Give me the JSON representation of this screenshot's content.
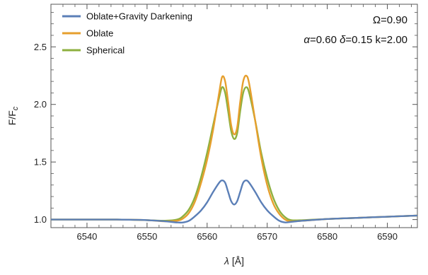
{
  "chart_data": {
    "type": "line",
    "title": "",
    "xlabel_symbol": "λ",
    "xlabel_unit": "[Å]",
    "ylabel_main": "F/F",
    "ylabel_sub": "c",
    "xlim": [
      6534,
      6595
    ],
    "ylim": [
      0.93,
      2.87
    ],
    "xticks": [
      6540,
      6550,
      6560,
      6570,
      6580,
      6590
    ],
    "yticks": [
      1.0,
      1.5,
      2.0,
      2.5
    ],
    "ytick_labels": [
      "1.0",
      "1.5",
      "2.0",
      "2.5"
    ],
    "grid": false,
    "legend_position": "top-left",
    "annotation_line1": "Ω=0.90",
    "annotation_line2": {
      "alpha_symbol": "α",
      "alpha_value": "=0.60 ",
      "delta_symbol": "δ",
      "delta_value": "=0.15 k=2.00"
    },
    "series": [
      {
        "name": "Oblate+Gravity Darkening",
        "color": "#5b7fb7",
        "x": [
          6534,
          6540,
          6545,
          6550,
          6553,
          6555,
          6556,
          6557,
          6558,
          6559,
          6560,
          6561,
          6562,
          6562.5,
          6563,
          6563.5,
          6564,
          6564.5,
          6565,
          6565.5,
          6566,
          6566.5,
          6567,
          6568,
          6569,
          6570,
          6571,
          6572,
          6573,
          6574,
          6576,
          6580,
          6585,
          6590,
          6595
        ],
        "y": [
          1.0,
          1.0,
          1.0,
          0.995,
          0.985,
          0.975,
          0.975,
          0.99,
          1.03,
          1.08,
          1.15,
          1.24,
          1.32,
          1.34,
          1.32,
          1.24,
          1.16,
          1.13,
          1.16,
          1.24,
          1.32,
          1.34,
          1.32,
          1.24,
          1.15,
          1.08,
          1.03,
          0.99,
          0.975,
          0.98,
          0.99,
          1.005,
          1.015,
          1.025,
          1.035
        ]
      },
      {
        "name": "Oblate",
        "color": "#e69f2d",
        "x": [
          6534,
          6540,
          6545,
          6550,
          6553,
          6555,
          6556,
          6557,
          6558,
          6559,
          6560,
          6561,
          6562,
          6562.5,
          6563,
          6563.5,
          6564,
          6564.5,
          6565,
          6565.5,
          6566,
          6566.5,
          6567,
          6568,
          6569,
          6570,
          6571,
          6572,
          6573,
          6574,
          6576,
          6580,
          6585,
          6590,
          6595
        ],
        "y": [
          1.0,
          1.0,
          1.0,
          0.995,
          0.985,
          0.99,
          1.01,
          1.06,
          1.16,
          1.32,
          1.52,
          1.78,
          2.1,
          2.24,
          2.2,
          2.02,
          1.82,
          1.74,
          1.8,
          2.02,
          2.2,
          2.25,
          2.18,
          1.86,
          1.54,
          1.3,
          1.14,
          1.05,
          1.0,
          0.985,
          0.99,
          1.005,
          1.015,
          1.025,
          1.035
        ]
      },
      {
        "name": "Spherical",
        "color": "#8db03f",
        "x": [
          6534,
          6540,
          6545,
          6550,
          6553,
          6555,
          6556,
          6557,
          6558,
          6559,
          6560,
          6561,
          6562,
          6562.5,
          6563,
          6563.5,
          6564,
          6564.5,
          6565,
          6565.5,
          6566,
          6566.5,
          6567,
          6568,
          6569,
          6570,
          6571,
          6572,
          6573,
          6574,
          6576,
          6580,
          6585,
          6590,
          6595
        ],
        "y": [
          1.0,
          1.0,
          1.0,
          0.995,
          0.99,
          1.0,
          1.03,
          1.09,
          1.2,
          1.37,
          1.58,
          1.82,
          2.06,
          2.15,
          2.1,
          1.94,
          1.77,
          1.7,
          1.75,
          1.94,
          2.1,
          2.15,
          2.1,
          1.86,
          1.58,
          1.36,
          1.19,
          1.08,
          1.02,
          0.995,
          0.995,
          1.005,
          1.015,
          1.025,
          1.035
        ]
      }
    ]
  }
}
